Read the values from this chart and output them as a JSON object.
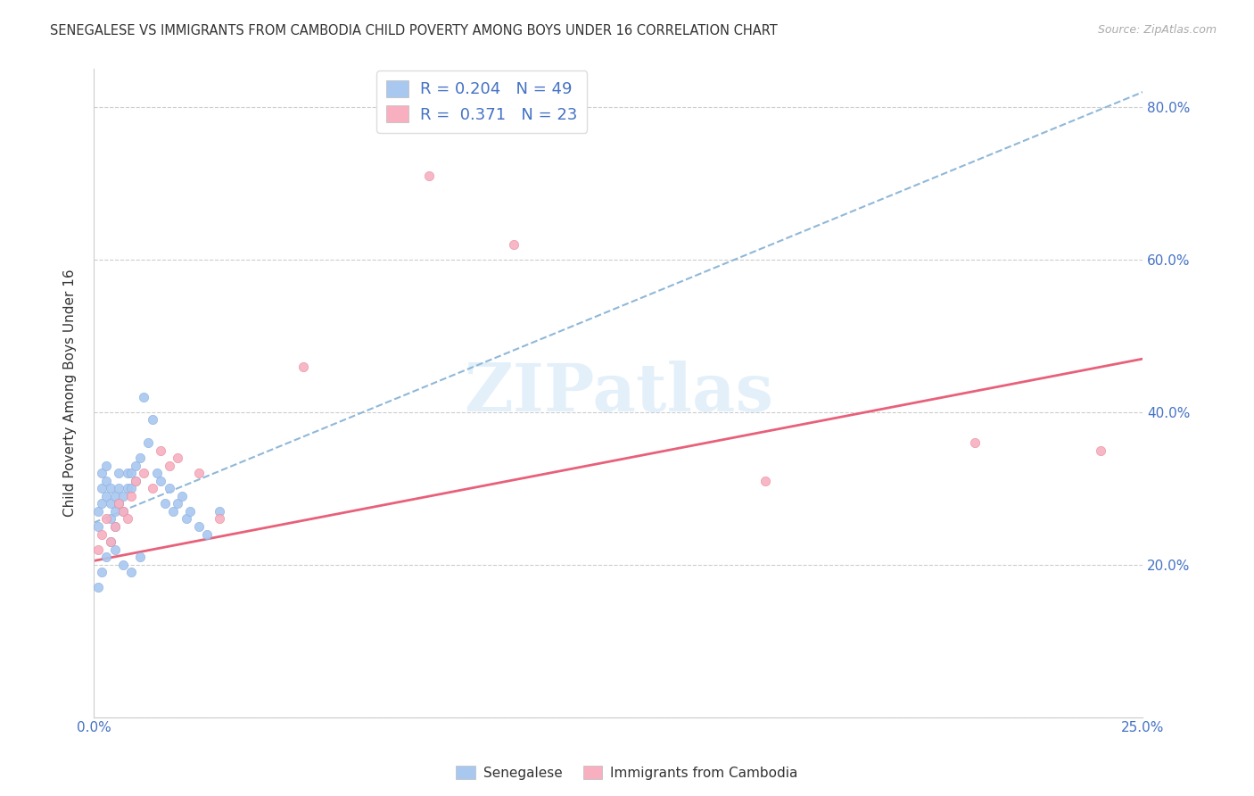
{
  "title": "SENEGALESE VS IMMIGRANTS FROM CAMBODIA CHILD POVERTY AMONG BOYS UNDER 16 CORRELATION CHART",
  "source": "Source: ZipAtlas.com",
  "ylabel": "Child Poverty Among Boys Under 16",
  "xlim": [
    0.0,
    0.25
  ],
  "ylim": [
    0.0,
    0.85
  ],
  "xticks": [
    0.0,
    0.05,
    0.1,
    0.15,
    0.2,
    0.25
  ],
  "xticklabels": [
    "0.0%",
    "",
    "",
    "",
    "",
    "25.0%"
  ],
  "yticks": [
    0.0,
    0.2,
    0.4,
    0.6,
    0.8
  ],
  "yticklabels": [
    "",
    "20.0%",
    "40.0%",
    "60.0%",
    "80.0%"
  ],
  "senegalese_color": "#a8c8f0",
  "senegalese_edge_color": "#90b0e0",
  "cambodia_color": "#f8b0c0",
  "cambodia_edge_color": "#e890a0",
  "trend_blue_color": "#90b8d8",
  "trend_pink_color": "#e8607a",
  "watermark_color": "#d8eaf8",
  "senegalese_x": [
    0.001,
    0.001,
    0.002,
    0.002,
    0.002,
    0.003,
    0.003,
    0.003,
    0.004,
    0.004,
    0.004,
    0.005,
    0.005,
    0.005,
    0.006,
    0.006,
    0.006,
    0.007,
    0.007,
    0.008,
    0.008,
    0.009,
    0.009,
    0.01,
    0.01,
    0.011,
    0.012,
    0.013,
    0.014,
    0.015,
    0.016,
    0.017,
    0.018,
    0.019,
    0.02,
    0.021,
    0.022,
    0.023,
    0.025,
    0.027,
    0.03,
    0.001,
    0.002,
    0.003,
    0.004,
    0.005,
    0.007,
    0.009,
    0.011
  ],
  "senegalese_y": [
    0.25,
    0.27,
    0.28,
    0.3,
    0.32,
    0.29,
    0.31,
    0.33,
    0.26,
    0.28,
    0.3,
    0.25,
    0.27,
    0.29,
    0.28,
    0.3,
    0.32,
    0.27,
    0.29,
    0.3,
    0.32,
    0.3,
    0.32,
    0.31,
    0.33,
    0.34,
    0.42,
    0.36,
    0.39,
    0.32,
    0.31,
    0.28,
    0.3,
    0.27,
    0.28,
    0.29,
    0.26,
    0.27,
    0.25,
    0.24,
    0.27,
    0.17,
    0.19,
    0.21,
    0.23,
    0.22,
    0.2,
    0.19,
    0.21
  ],
  "cambodia_x": [
    0.001,
    0.002,
    0.003,
    0.004,
    0.005,
    0.006,
    0.007,
    0.008,
    0.009,
    0.01,
    0.012,
    0.014,
    0.016,
    0.018,
    0.02,
    0.025,
    0.03,
    0.05,
    0.08,
    0.1,
    0.16,
    0.21,
    0.24
  ],
  "cambodia_y": [
    0.22,
    0.24,
    0.26,
    0.23,
    0.25,
    0.28,
    0.27,
    0.26,
    0.29,
    0.31,
    0.32,
    0.3,
    0.35,
    0.33,
    0.34,
    0.32,
    0.26,
    0.46,
    0.71,
    0.62,
    0.31,
    0.36,
    0.35
  ],
  "blue_trend_x0": 0.0,
  "blue_trend_y0": 0.255,
  "blue_trend_x1": 0.25,
  "blue_trend_y1": 0.82,
  "pink_trend_x0": 0.0,
  "pink_trend_y0": 0.205,
  "pink_trend_x1": 0.25,
  "pink_trend_y1": 0.47
}
